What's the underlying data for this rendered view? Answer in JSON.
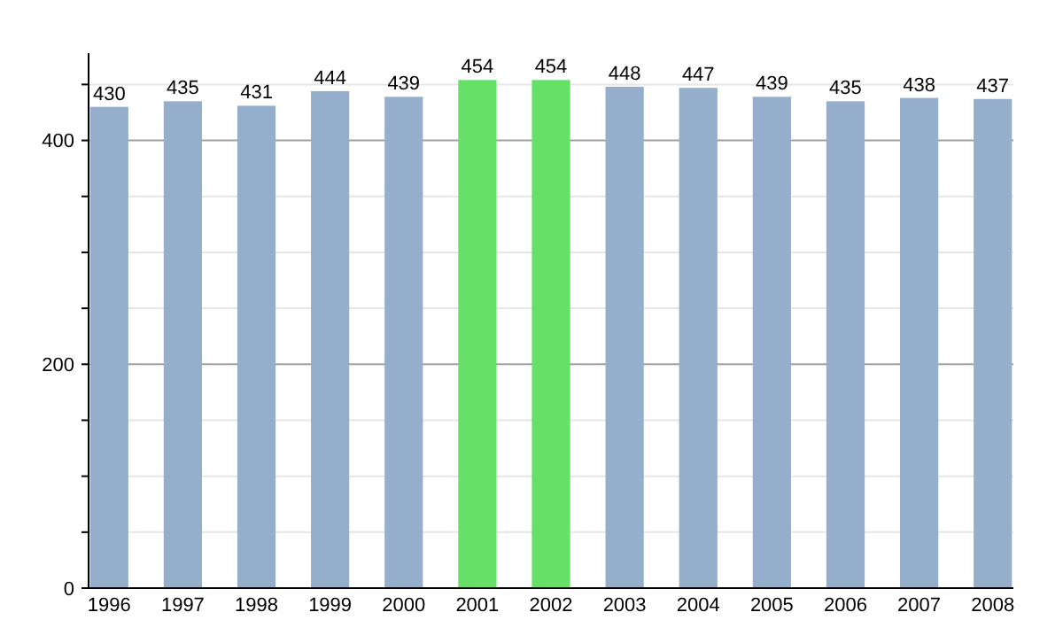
{
  "chart_data": {
    "type": "bar",
    "categories": [
      "1996",
      "1997",
      "1998",
      "1999",
      "2000",
      "2001",
      "2002",
      "2003",
      "2004",
      "2005",
      "2006",
      "2007",
      "2008"
    ],
    "values": [
      430,
      435,
      431,
      444,
      439,
      454,
      454,
      448,
      447,
      439,
      435,
      438,
      437
    ],
    "colors": [
      "#94aecb",
      "#94aecb",
      "#94aecb",
      "#94aecb",
      "#94aecb",
      "#66e066",
      "#66e066",
      "#94aecb",
      "#94aecb",
      "#94aecb",
      "#94aecb",
      "#94aecb",
      "#94aecb"
    ],
    "ylim": [
      0,
      478
    ],
    "yticks": [
      0,
      {
        "value": 50,
        "label": null
      },
      {
        "value": 100,
        "label": null
      },
      {
        "value": 150,
        "label": null
      },
      200,
      {
        "value": 250,
        "label": null
      },
      {
        "value": 300,
        "label": null
      },
      {
        "value": 350,
        "label": null
      },
      400,
      {
        "value": 450,
        "label": null
      }
    ],
    "grid": true,
    "data_labels": true
  }
}
